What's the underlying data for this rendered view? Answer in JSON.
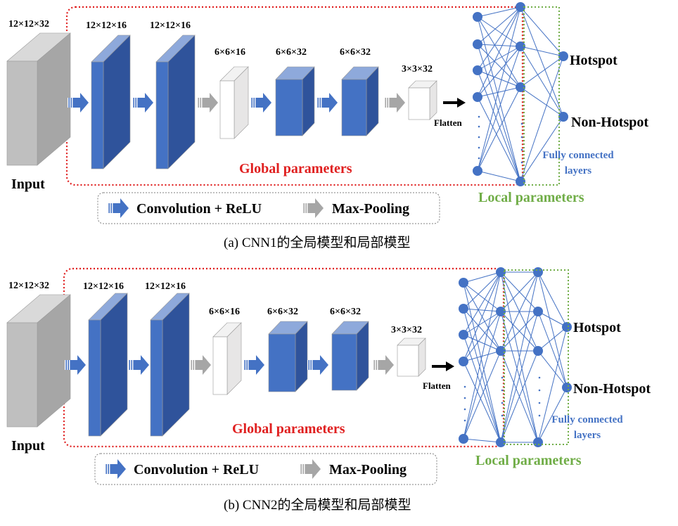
{
  "panels": [
    {
      "input_dims": "12×12×32",
      "input_label": "Input",
      "layers": [
        {
          "dims": "12×12×16"
        },
        {
          "dims": "12×12×16"
        },
        {
          "dims": "6×6×16"
        },
        {
          "dims": "6×6×32"
        },
        {
          "dims": "6×6×32"
        },
        {
          "dims": "3×3×32"
        }
      ],
      "flatten_label": "Flatten",
      "global_label": "Global parameters",
      "local_label": "Local parameters",
      "fc_label_line1": "Fully connected",
      "fc_label_line2": "layers",
      "outputs": [
        "Hotspot",
        "Non-Hotspot"
      ],
      "legend": {
        "conv": "Convolution + ReLU",
        "pool": "Max-Pooling"
      },
      "caption": "(a) CNN1的全局模型和局部模型"
    },
    {
      "input_dims": "12×12×32",
      "input_label": "Input",
      "layers": [
        {
          "dims": "12×12×16"
        },
        {
          "dims": "12×12×16"
        },
        {
          "dims": "6×6×16"
        },
        {
          "dims": "6×6×32"
        },
        {
          "dims": "6×6×32"
        },
        {
          "dims": "3×3×32"
        }
      ],
      "flatten_label": "Flatten",
      "global_label": "Global parameters",
      "local_label": "Local parameters",
      "fc_label_line1": "Fully connected",
      "fc_label_line2": "layers",
      "outputs": [
        "Hotspot",
        "Non-Hotspot"
      ],
      "legend": {
        "conv": "Convolution + ReLU",
        "pool": "Max-Pooling"
      },
      "caption": "(b) CNN2的全局模型和局部模型"
    }
  ],
  "colors": {
    "conv_front": "#4472C4",
    "conv_side": "#2F539B",
    "conv_top": "#8EA9DB",
    "input_front": "#BFBFBF",
    "input_side": "#A6A6A6",
    "input_top": "#D9D9D9",
    "pool_front": "#FFFFFF",
    "node": "#4472C4",
    "global_border": "#E02020",
    "local_border": "#70AD47",
    "fc_text": "#4472C4",
    "arrow_gray": "#A6A6A6"
  }
}
